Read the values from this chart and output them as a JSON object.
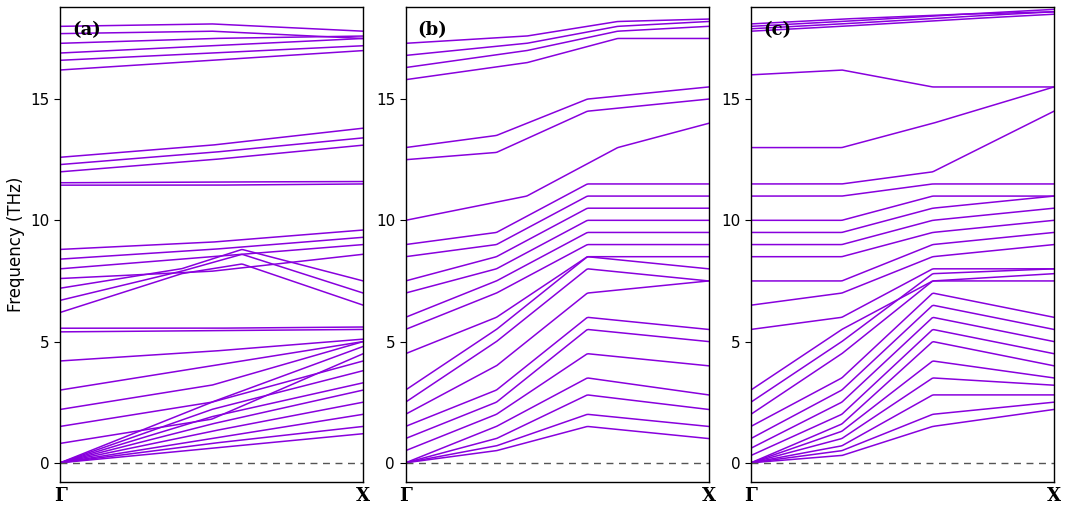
{
  "line_color": "#8800dd",
  "line_width": 1.1,
  "ylim": [
    -0.8,
    18.8
  ],
  "yticks": [
    0,
    5,
    10,
    15
  ],
  "xlabel_left": "Γ",
  "xlabel_right": "X",
  "ylabel": "Frequency (THz)",
  "panel_labels": [
    "(a)",
    "(b)",
    "(c)"
  ],
  "background_color": "#ffffff",
  "n_kpoints": 200
}
